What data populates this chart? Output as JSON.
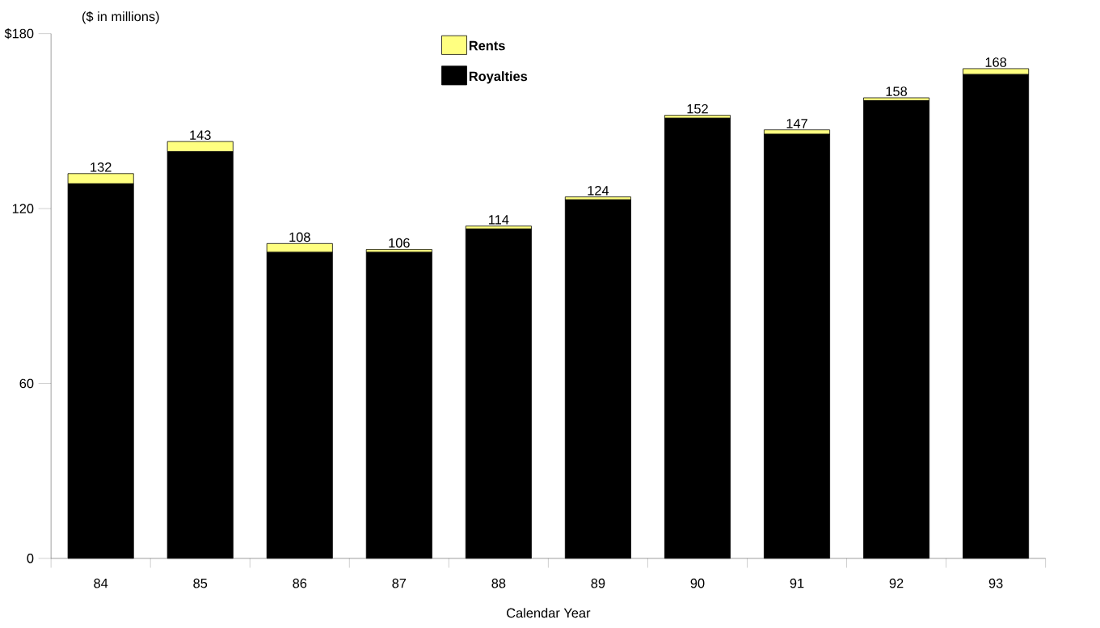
{
  "chart_data": {
    "type": "bar",
    "stacked": true,
    "ylabel": "($ in millions)",
    "xlabel": "Calendar Year",
    "categories": [
      "84",
      "85",
      "86",
      "87",
      "88",
      "89",
      "90",
      "91",
      "92",
      "93"
    ],
    "series": [
      {
        "name": "Royalties",
        "color": "#000000",
        "values": [
          128.5,
          139.5,
          105,
          105,
          113,
          123,
          151,
          145.5,
          157,
          166
        ]
      },
      {
        "name": "Rents",
        "color": "#ffff80",
        "values": [
          3.5,
          3.5,
          3,
          1,
          1,
          1,
          1,
          1.5,
          1,
          2
        ]
      }
    ],
    "totals": [
      "132",
      "143",
      "108",
      "106",
      "114",
      "124",
      "152",
      "147",
      "158",
      "168"
    ],
    "ylim": [
      0,
      180
    ],
    "yticks": [
      0,
      60,
      120,
      {
        "value": 180,
        "label": "$180"
      }
    ],
    "legend": "top"
  }
}
